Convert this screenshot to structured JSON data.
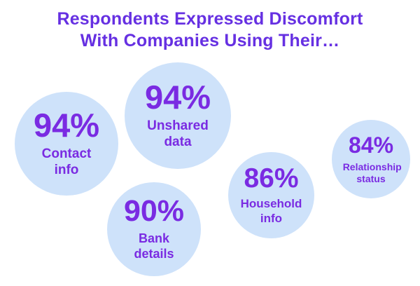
{
  "title": {
    "line1": "Respondents Expressed Discomfort",
    "line2": "With Companies Using Their…"
  },
  "colors": {
    "title_purple": "#6630e2",
    "text_purple": "#7a2be2",
    "bubble_blue": "#cee2fa",
    "background": "#ffffff"
  },
  "chart_data": {
    "type": "bubble",
    "title": "Respondents Expressed Discomfort With Companies Using Their…",
    "categories": [
      "Contact info",
      "Unshared data",
      "Bank details",
      "Household info",
      "Relationship status"
    ],
    "values": [
      94,
      94,
      90,
      86,
      84
    ],
    "series": [
      {
        "label": "Contact info",
        "value_pct": 94,
        "display": "94%"
      },
      {
        "label": "Unshared data",
        "value_pct": 94,
        "display": "94%"
      },
      {
        "label": "Bank details",
        "value_pct": 90,
        "display": "90%"
      },
      {
        "label": "Household info",
        "value_pct": 86,
        "display": "86%"
      },
      {
        "label": "Relationship status",
        "value_pct": 84,
        "display": "84%"
      }
    ],
    "layout": {
      "background": "white",
      "axes": "none",
      "grid": false,
      "legend": "none",
      "bubble_size_maps_to": "value_pct"
    }
  }
}
